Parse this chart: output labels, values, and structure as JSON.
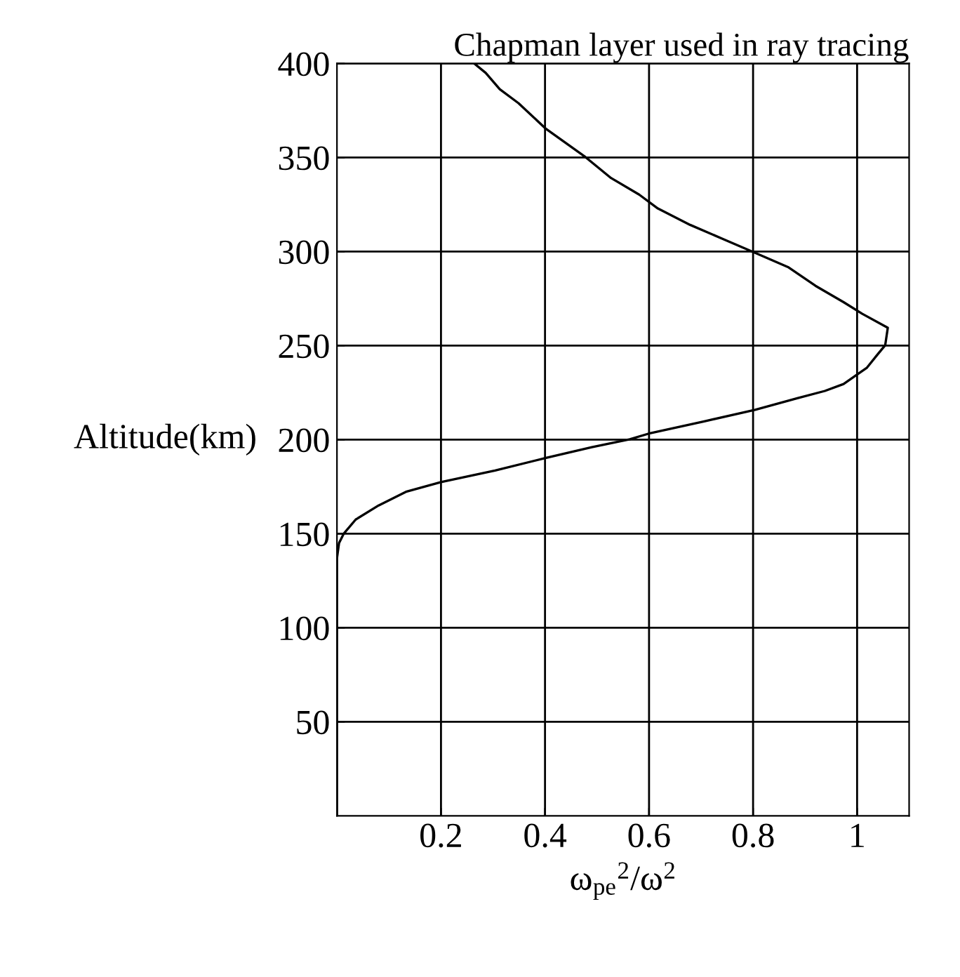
{
  "chart_data": {
    "type": "line",
    "title": "Chapman layer used in ray tracing",
    "xlabel": "ω$_{pe}$$^{2}$/ω$^{2}$",
    "ylabel": "Altitude(km)",
    "series": [
      {
        "color": "#000000",
        "x": [
          0,
          0,
          0.004,
          0.013,
          0.036,
          0.08,
          0.134,
          0.2,
          0.304,
          0.402,
          0.49,
          0.563,
          0.603,
          0.706,
          0.804,
          0.885,
          0.938,
          0.974,
          1.0,
          1.019,
          1.037,
          1.054,
          1.059,
          1.01,
          0.974,
          0.92,
          0.867,
          0.804,
          0.742,
          0.679,
          0.617,
          0.581,
          0.527,
          0.478,
          0.402,
          0.349,
          0.313,
          0.286,
          0.264
        ],
        "values": [
          0,
          137,
          145,
          150,
          157.5,
          165,
          172.4,
          177.4,
          183.6,
          190.3,
          196,
          200.2,
          203.5,
          209.7,
          215.9,
          222,
          225.9,
          229.6,
          234.6,
          238.3,
          244.5,
          250.2,
          259.5,
          266.9,
          273.1,
          281.8,
          291.8,
          299.3,
          306.7,
          314.2,
          322.9,
          330.3,
          339.1,
          350.2,
          365.2,
          378.9,
          386.3,
          395,
          400
        ]
      }
    ],
    "xlim": [
      0,
      1.1
    ],
    "ylim": [
      0,
      400
    ],
    "xticks": [
      0.2,
      0.4,
      0.6,
      0.8,
      1
    ],
    "yticks": [
      50,
      100,
      150,
      200,
      250,
      300,
      350,
      400
    ],
    "grid": true
  }
}
